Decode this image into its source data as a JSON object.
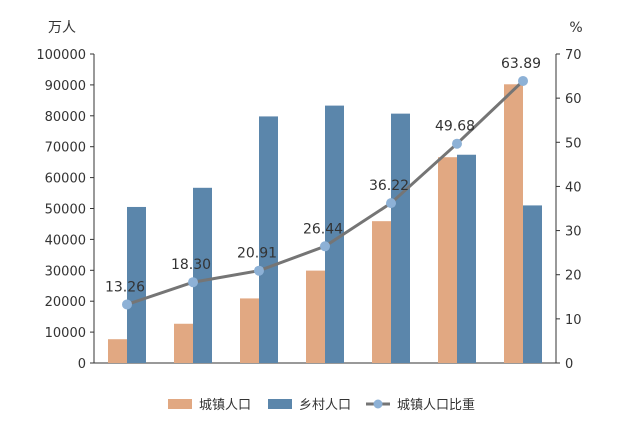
{
  "chart_data": {
    "type": "bar",
    "title": "",
    "y_left_unit": "万人",
    "y_right_unit": "%",
    "y_left_ticks": [
      "0",
      "10000",
      "20000",
      "30000",
      "40000",
      "50000",
      "60000",
      "70000",
      "80000",
      "90000",
      "100000"
    ],
    "y_right_ticks": [
      "0",
      "10",
      "20",
      "30",
      "40",
      "50",
      "60",
      "70"
    ],
    "ylim_left": [
      0,
      100000
    ],
    "ylim_right": [
      0,
      70
    ],
    "categories": [
      "",
      "",
      "",
      "",
      "",
      "",
      ""
    ],
    "series": [
      {
        "name": "城镇人口",
        "type": "bar",
        "axis": "left",
        "color": "#e1a882",
        "values": [
          7700,
          12700,
          20900,
          29900,
          45900,
          66600,
          90200
        ]
      },
      {
        "name": "乡村人口",
        "type": "bar",
        "axis": "left",
        "color": "#5b86ab",
        "values": [
          50500,
          56700,
          79800,
          83300,
          80700,
          67400,
          51000
        ]
      },
      {
        "name": "城镇人口比重",
        "type": "line",
        "axis": "right",
        "color": "#757575",
        "marker_color": "#8db1d6",
        "values": [
          13.26,
          18.3,
          20.91,
          26.44,
          36.22,
          49.68,
          63.89
        ],
        "labels": [
          "13.26",
          "18.30",
          "20.91",
          "26.44",
          "36.22",
          "49.68",
          "63.89"
        ]
      }
    ],
    "legend": {
      "position": "bottom"
    },
    "grid": false
  }
}
